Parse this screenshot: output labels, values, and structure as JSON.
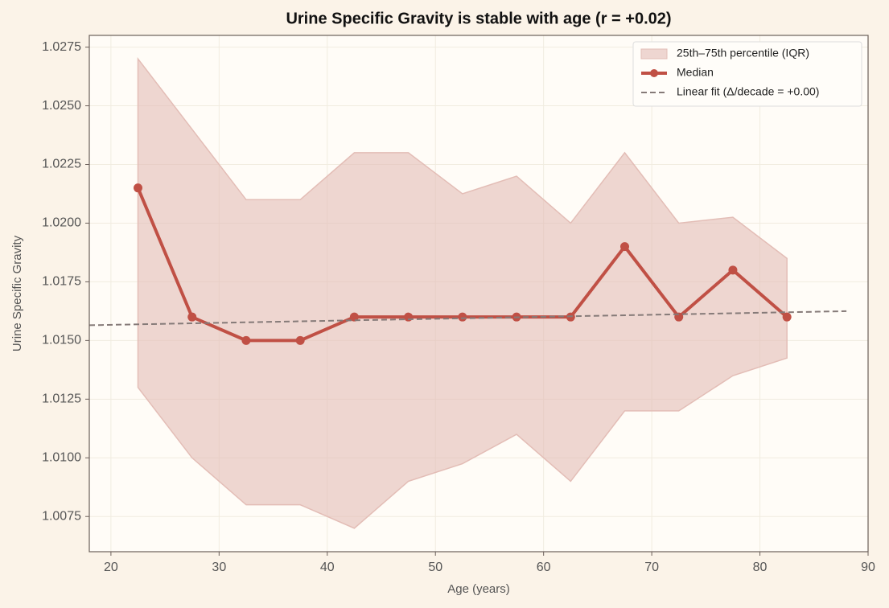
{
  "chart_data": {
    "type": "line",
    "title": "Urine Specific Gravity is stable with age (r = +0.02)",
    "xlabel": "Age (years)",
    "ylabel": "Urine Specific Gravity",
    "xlim": [
      18,
      90
    ],
    "xticks": [
      20,
      30,
      40,
      50,
      60,
      70,
      80,
      90
    ],
    "ylim": [
      1.006,
      1.028
    ],
    "yticks": [
      1.0075,
      {
        "value": 1.01,
        "label": "1.0100"
      },
      1.0125,
      {
        "value": 1.015,
        "label": "1.0150"
      },
      1.0175,
      {
        "value": 1.02,
        "label": "1.0200"
      },
      1.0225,
      {
        "value": 1.025,
        "label": "1.0250"
      },
      1.0275
    ],
    "grid": true,
    "legend": "upper right",
    "x": [
      22.5,
      27.5,
      32.5,
      37.5,
      42.5,
      47.5,
      52.5,
      57.5,
      62.5,
      67.5,
      72.5,
      77.5,
      82.5
    ],
    "series": [
      {
        "name": "25th–75th percentile (IQR)",
        "kind": "band",
        "color": "#e3bdb6",
        "lower": [
          1.013,
          1.01,
          1.008,
          1.008,
          1.007,
          1.009,
          1.00975,
          1.011,
          1.009,
          1.012,
          1.012,
          1.0135,
          1.01425
        ],
        "upper": [
          1.027,
          1.024,
          1.021,
          1.021,
          1.023,
          1.023,
          1.02125,
          1.022,
          1.02,
          1.023,
          1.02,
          1.02025,
          1.0185
        ]
      },
      {
        "name": "Median",
        "kind": "line",
        "color": "#c05045",
        "values": [
          1.0215,
          1.016,
          1.015,
          1.015,
          1.016,
          1.016,
          1.016,
          1.016,
          1.016,
          1.019,
          1.016,
          1.018,
          1.016
        ]
      },
      {
        "name": "Linear fit (Δ/decade = +0.00)",
        "kind": "fit",
        "color": "#857a78",
        "x": [
          18,
          88
        ],
        "values": [
          1.01565,
          1.01625
        ]
      }
    ]
  }
}
